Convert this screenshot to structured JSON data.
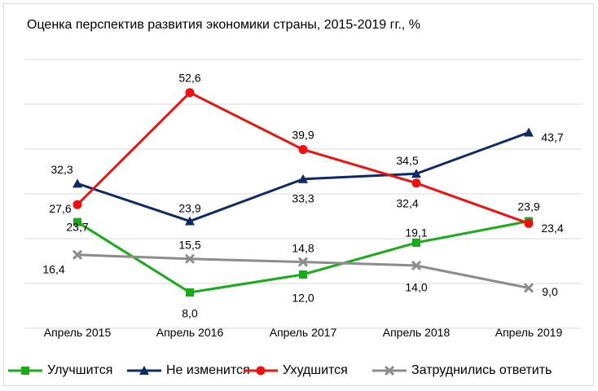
{
  "chart_data": {
    "type": "line",
    "title": "Оценка перспектив развития экономики страны, 2015-2019 гг., %",
    "categories": [
      "Апрель 2015",
      "Апрель 2016",
      "Апрель 2017",
      "Апрель 2018",
      "Апрель 2019"
    ],
    "xlabel": "",
    "ylabel": "",
    "ylim": [
      0,
      60
    ],
    "grid": true,
    "legend_position": "bottom",
    "series": [
      {
        "name": "Улучшится",
        "values": [
          23.7,
          8.0,
          12.0,
          19.1,
          23.9
        ],
        "labels": [
          "23,7",
          "8,0",
          "12,0",
          "19,1",
          "23,9"
        ],
        "color": "#1aaa1a",
        "marker": "square"
      },
      {
        "name": "Не изменится",
        "values": [
          32.3,
          23.9,
          33.3,
          34.5,
          43.7
        ],
        "labels": [
          "32,3",
          "23,9",
          "33,3",
          "34,5",
          "43,7"
        ],
        "color": "#0f2a66",
        "marker": "triangle"
      },
      {
        "name": "Ухудшится",
        "values": [
          27.6,
          52.6,
          39.9,
          32.4,
          23.4
        ],
        "labels": [
          "27,6",
          "52,6",
          "39,9",
          "32,4",
          "23,4"
        ],
        "color": "#f01010",
        "marker": "circle"
      },
      {
        "name": "Затруднились ответить",
        "values": [
          16.4,
          15.5,
          14.8,
          14.0,
          9.0
        ],
        "labels": [
          "16,4",
          "15,5",
          "14,8",
          "14,0",
          "9,0"
        ],
        "color": "#8c8c8c",
        "marker": "x"
      }
    ]
  }
}
